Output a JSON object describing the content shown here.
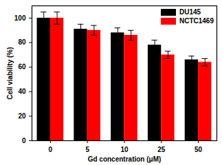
{
  "chart_data": {
    "type": "bar",
    "x_label": "Gd concentration (μM)",
    "y_label": "Cell viability (%)",
    "categories": [
      0,
      5,
      10,
      25,
      50
    ],
    "series": [
      {
        "name": "DU145",
        "color": "#000000",
        "values": [
          100,
          91,
          88,
          78,
          66
        ],
        "errors": [
          5,
          4,
          4,
          4,
          3
        ]
      },
      {
        "name": "NCTC1469",
        "color": "#ff0000",
        "values": [
          100,
          90,
          86,
          70,
          64
        ],
        "errors": [
          5,
          4,
          4,
          3,
          3
        ]
      }
    ],
    "ylim": [
      0,
      110
    ],
    "yticks": [
      0,
      20,
      40,
      60,
      80,
      100
    ],
    "legend": "top-right",
    "grid": false
  }
}
